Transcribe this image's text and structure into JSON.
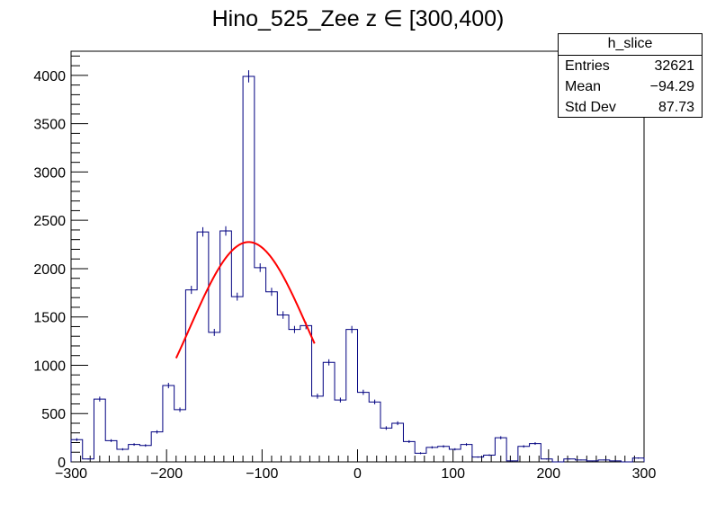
{
  "chart_data": {
    "type": "histogram",
    "title": "Hino_525_Zee z  ∈ [300,400)",
    "xlabel": "",
    "ylabel": "",
    "xlim": [
      -300,
      300
    ],
    "ylim": [
      0,
      4250
    ],
    "x_ticks": [
      "−300",
      "−200",
      "−100",
      "0",
      "100",
      "200",
      "300"
    ],
    "y_ticks": [
      "0",
      "500",
      "1000",
      "1500",
      "2000",
      "2500",
      "3000",
      "3500",
      "4000"
    ],
    "bin_width": 12,
    "bin_edges_start": -300,
    "values": [
      230,
      30,
      650,
      220,
      130,
      180,
      170,
      310,
      790,
      540,
      1780,
      2380,
      1340,
      2390,
      1710,
      3990,
      2010,
      1760,
      1520,
      1370,
      1410,
      680,
      1030,
      640,
      1370,
      720,
      620,
      350,
      400,
      210,
      90,
      150,
      160,
      130,
      180,
      50,
      70,
      250,
      10,
      160,
      190,
      30,
      0,
      30,
      20,
      10,
      20,
      10,
      0,
      40
    ],
    "fit": {
      "type": "gaussian",
      "color": "#ff0000",
      "x_range": [
        -190,
        -45
      ],
      "amplitude": 2275,
      "mean": -114,
      "sigma": 62
    },
    "colors": {
      "histogram": "#000080",
      "fit": "#ff0000",
      "frame": "#000000"
    },
    "stats": {
      "name": "h_slice",
      "rows": [
        {
          "label": "Entries",
          "value": "32621"
        },
        {
          "label": "Mean",
          "value": "−94.29"
        },
        {
          "label": "Std Dev",
          "value": "87.73"
        }
      ]
    }
  }
}
